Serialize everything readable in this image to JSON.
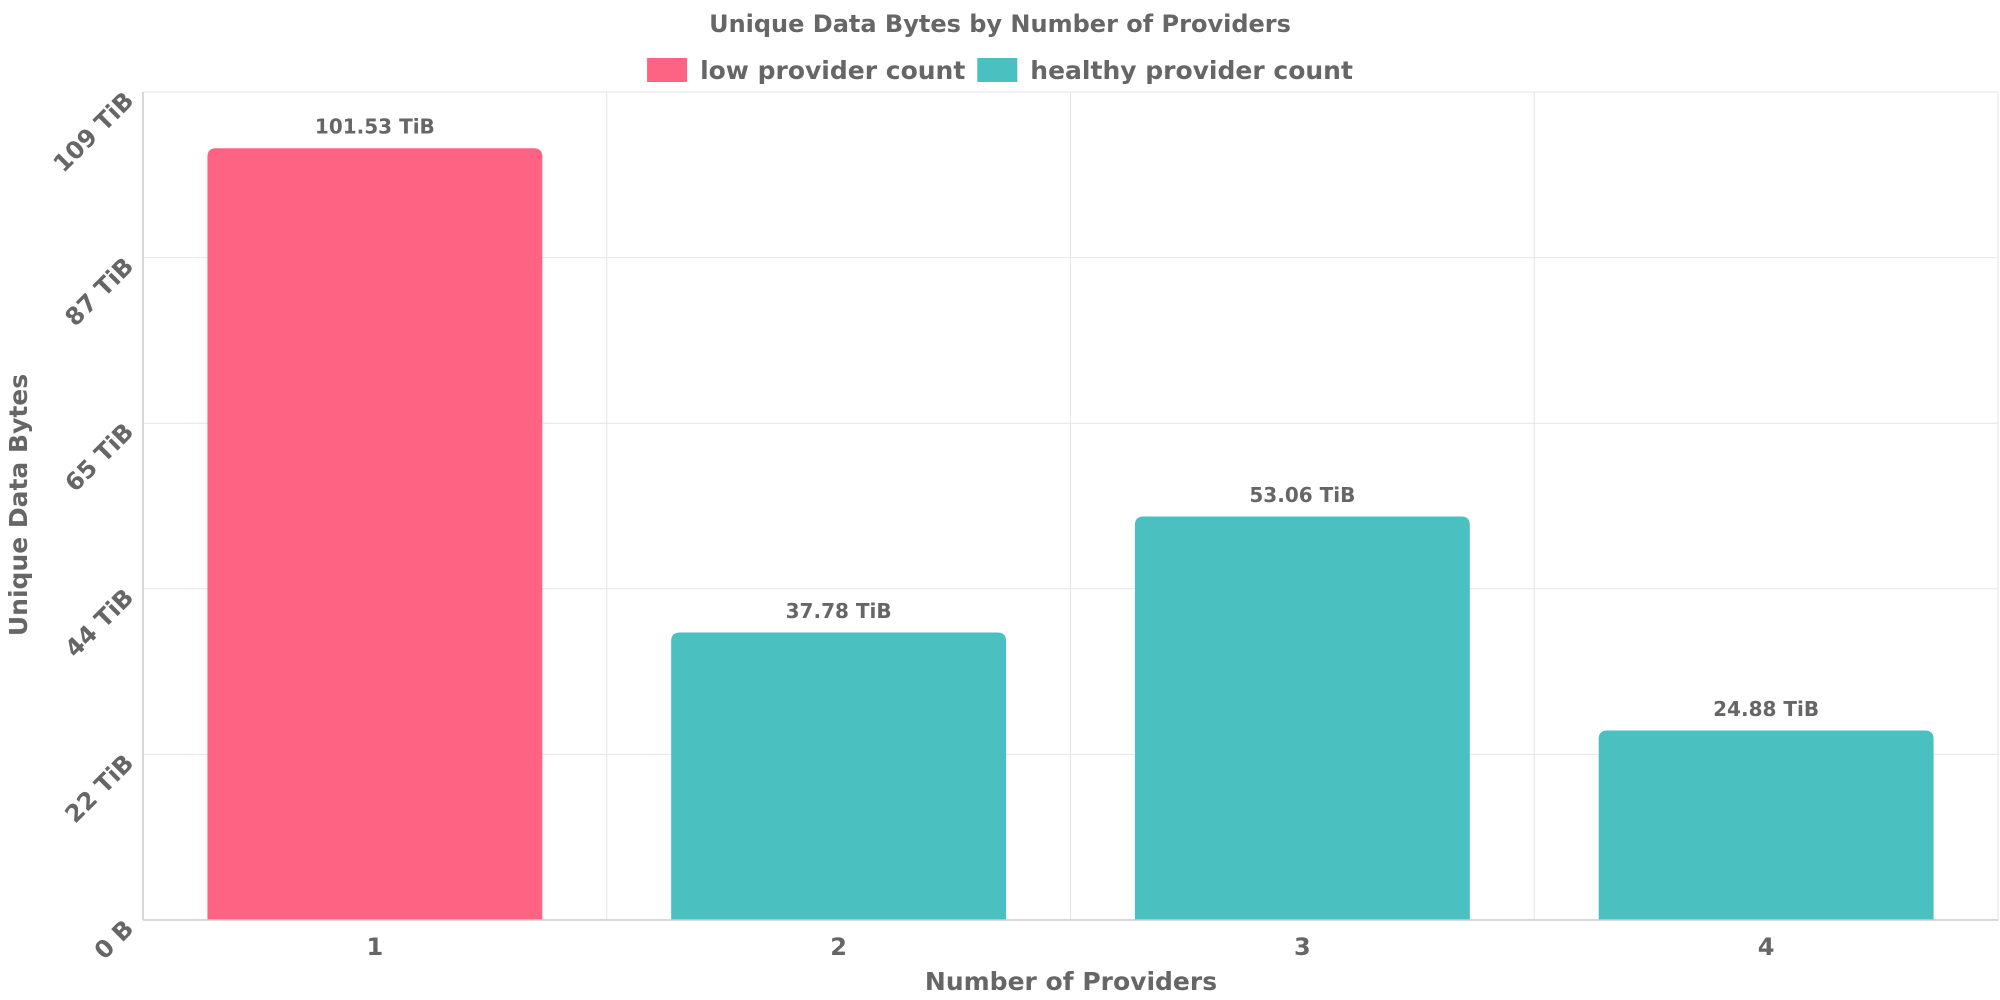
{
  "chart_data": {
    "type": "bar",
    "title": "Unique Data Bytes by Number of Providers",
    "xlabel": "Number of Providers",
    "ylabel": "Unique Data Bytes",
    "categories": [
      "1",
      "2",
      "3",
      "4"
    ],
    "values": [
      101.53,
      37.78,
      53.06,
      24.88
    ],
    "value_unit": "TiB",
    "data_labels": [
      "101.53 TiB",
      "37.78 TiB",
      "53.06 TiB",
      "24.88 TiB"
    ],
    "bar_legend_index": [
      0,
      1,
      1,
      1
    ],
    "legend": [
      {
        "label": "low provider count",
        "color": "#ff6384"
      },
      {
        "label": "healthy provider count",
        "color": "#4bc0c0"
      }
    ],
    "legend_position": "top",
    "y_ticks": [
      {
        "value": 0,
        "label": "0 B"
      },
      {
        "value": 21.8,
        "label": "22 TiB"
      },
      {
        "value": 43.6,
        "label": "44 TiB"
      },
      {
        "value": 65.4,
        "label": "65 TiB"
      },
      {
        "value": 87.2,
        "label": "87 TiB"
      },
      {
        "value": 109,
        "label": "109 TiB"
      }
    ],
    "ylim": [
      0,
      109
    ],
    "grid": true
  }
}
